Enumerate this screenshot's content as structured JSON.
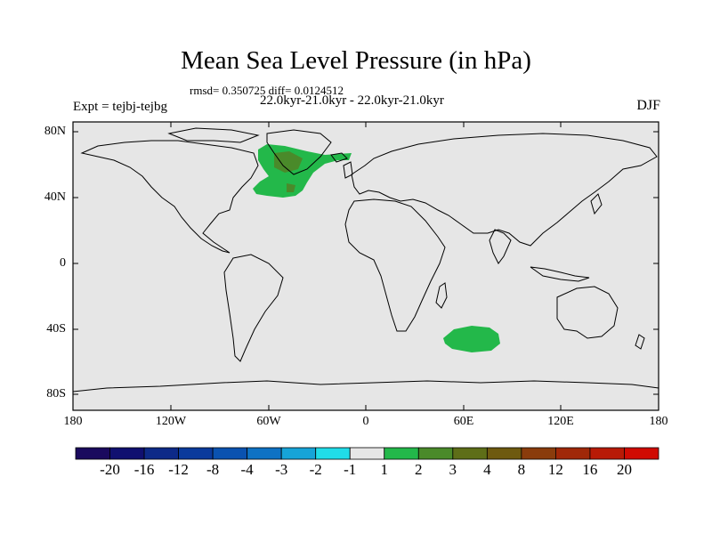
{
  "title": "Mean Sea Level Pressure (in hPa)",
  "stats_line": "rmsd= 0.350725 diff= 0.0124512",
  "period_line": "22.0kyr-21.0kyr - 22.0kyr-21.0kyr",
  "experiment": "Expt = tejbj-tejbg",
  "season": "DJF",
  "lat_labels": [
    "80N",
    "40N",
    "0",
    "40S",
    "80S"
  ],
  "lon_labels": [
    "180",
    "120W",
    "60W",
    "0",
    "60E",
    "120E",
    "180"
  ],
  "colorbar": {
    "labels": [
      "-20",
      "-16",
      "-12",
      "-8",
      "-4",
      "-3",
      "-2",
      "-1",
      "1",
      "2",
      "3",
      "4",
      "8",
      "12",
      "16",
      "20"
    ],
    "colors": [
      "#1a0a5e",
      "#101070",
      "#0d2a88",
      "#0a3a9c",
      "#0a52b0",
      "#0e72c4",
      "#16a4d8",
      "#20dce8",
      "#e6e6e6",
      "#23b84a",
      "#4a8a2a",
      "#5e6e18",
      "#6e5a10",
      "#8a3c0c",
      "#a02808",
      "#b81a06",
      "#d00a02"
    ]
  },
  "colors": {
    "background": "#e6e6e6",
    "land_outline": "#000000",
    "anomaly_1_2": "#23b84a",
    "anomaly_2_3": "#4a8a2a"
  }
}
